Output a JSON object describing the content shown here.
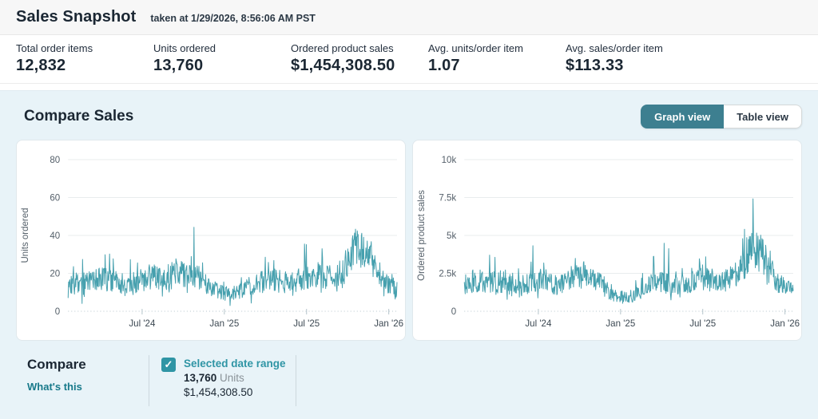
{
  "header": {
    "title": "Sales Snapshot",
    "taken_at": "taken at 1/29/2026, 8:56:06 AM PST"
  },
  "stats": [
    {
      "label": "Total order items",
      "value": "12,832"
    },
    {
      "label": "Units ordered",
      "value": "13,760"
    },
    {
      "label": "Ordered product sales",
      "value": "$1,454,308.50"
    },
    {
      "label": "Avg. units/order item",
      "value": "1.07"
    },
    {
      "label": "Avg. sales/order item",
      "value": "$113.33"
    }
  ],
  "compare_sales": {
    "title": "Compare Sales",
    "graph_view_label": "Graph view",
    "table_view_label": "Table view",
    "selected_view": "Graph view"
  },
  "compare": {
    "title": "Compare",
    "whats_this_label": "What's this",
    "selected_range": {
      "checked": true,
      "check_glyph": "✓",
      "label": "Selected date range",
      "units_value": "13,760",
      "units_suffix": " Units",
      "sales_value": "$1,454,308.50"
    }
  },
  "colors": {
    "accent_teal_button": "#3d7f90",
    "accent_teal_link": "#17798a",
    "accent_teal_checkbox": "#2f95a5",
    "chart_line": "#46a0ae",
    "panel_bg": "#e8f3f8",
    "grid_line": "#e9ecee",
    "axis_dotted": "#b6c5cc",
    "tick_text": "#55606a",
    "xlabel_text": "#3c4852"
  },
  "chart_data": [
    {
      "type": "line",
      "title": "",
      "xlabel": "",
      "ylabel": "Units ordered",
      "legend": "none",
      "grid": true,
      "x_range_dates": [
        "Jan 29 '24",
        "Jan 29 '26"
      ],
      "ylim": [
        0,
        80
      ],
      "yticks": [
        {
          "value": 0,
          "label": "0"
        },
        {
          "value": 20,
          "label": "20"
        },
        {
          "value": 40,
          "label": "40"
        },
        {
          "value": 60,
          "label": "60"
        },
        {
          "value": 80,
          "label": "80"
        }
      ],
      "xticks": [
        {
          "t": 0.225,
          "label": "Jul '24"
        },
        {
          "t": 0.475,
          "label": "Jan '25"
        },
        {
          "t": 0.725,
          "label": "Jul '25"
        },
        {
          "t": 0.975,
          "label": "Jan '26"
        }
      ],
      "points": 730,
      "seed": 7,
      "vmin": 3,
      "vmax": 59,
      "spike_prob": 0.06,
      "dip_prob": 0.07,
      "line_color": "#46a0ae",
      "total_for_range": 13760,
      "monthly_profile": [
        {
          "t": 0.0,
          "mean": 13,
          "spread": 6,
          "spike": 8
        },
        {
          "t": 0.042,
          "mean": 16,
          "spread": 7,
          "spike": 12
        },
        {
          "t": 0.083,
          "mean": 16,
          "spread": 7,
          "spike": 14
        },
        {
          "t": 0.125,
          "mean": 17,
          "spread": 7,
          "spike": 16
        },
        {
          "t": 0.167,
          "mean": 14,
          "spread": 6,
          "spike": 8
        },
        {
          "t": 0.208,
          "mean": 15,
          "spread": 6,
          "spike": 10
        },
        {
          "t": 0.25,
          "mean": 19,
          "spread": 7,
          "spike": 15
        },
        {
          "t": 0.292,
          "mean": 16,
          "spread": 6,
          "spike": 16
        },
        {
          "t": 0.333,
          "mean": 20,
          "spread": 7,
          "spike": 12
        },
        {
          "t": 0.375,
          "mean": 21,
          "spread": 8,
          "spike": 24
        },
        {
          "t": 0.417,
          "mean": 15,
          "spread": 6,
          "spike": 8
        },
        {
          "t": 0.458,
          "mean": 10,
          "spread": 4,
          "spike": 5
        },
        {
          "t": 0.5,
          "mean": 9,
          "spread": 4,
          "spike": 5
        },
        {
          "t": 0.542,
          "mean": 13,
          "spread": 5,
          "spike": 7
        },
        {
          "t": 0.583,
          "mean": 15,
          "spread": 6,
          "spike": 12
        },
        {
          "t": 0.625,
          "mean": 16,
          "spread": 6,
          "spike": 8
        },
        {
          "t": 0.667,
          "mean": 15,
          "spread": 6,
          "spike": 8
        },
        {
          "t": 0.708,
          "mean": 17,
          "spread": 6,
          "spike": 17
        },
        {
          "t": 0.75,
          "mean": 18,
          "spread": 6,
          "spike": 10
        },
        {
          "t": 0.792,
          "mean": 18,
          "spread": 7,
          "spike": 12
        },
        {
          "t": 0.833,
          "mean": 22,
          "spread": 8,
          "spike": 12
        },
        {
          "t": 0.875,
          "mean": 34,
          "spread": 10,
          "spike": 22
        },
        {
          "t": 0.917,
          "mean": 30,
          "spread": 9,
          "spike": 14
        },
        {
          "t": 0.958,
          "mean": 16,
          "spread": 6,
          "spike": 8
        },
        {
          "t": 1.0,
          "mean": 12,
          "spread": 5,
          "spike": 4
        }
      ]
    },
    {
      "type": "line",
      "title": "",
      "xlabel": "",
      "ylabel": "Ordered product sales",
      "legend": "none",
      "grid": true,
      "x_range_dates": [
        "Jan 29 '24",
        "Jan 29 '26"
      ],
      "ylim": [
        0,
        10000
      ],
      "yticks": [
        {
          "value": 0,
          "label": "0"
        },
        {
          "value": 2500,
          "label": "2.5k"
        },
        {
          "value": 5000,
          "label": "5k"
        },
        {
          "value": 7500,
          "label": "7.5k"
        },
        {
          "value": 10000,
          "label": "10k"
        }
      ],
      "xticks": [
        {
          "t": 0.225,
          "label": "Jul '24"
        },
        {
          "t": 0.475,
          "label": "Jan '25"
        },
        {
          "t": 0.725,
          "label": "Jul '25"
        },
        {
          "t": 0.975,
          "label": "Jan '26"
        }
      ],
      "points": 730,
      "seed": 13,
      "vmin": 250,
      "vmax": 8800,
      "spike_prob": 0.06,
      "dip_prob": 0.07,
      "line_color": "#46a0ae",
      "total_for_range": 1454308.5,
      "monthly_profile": [
        {
          "t": 0.0,
          "mean": 1800,
          "spread": 800,
          "spike": 900
        },
        {
          "t": 0.042,
          "mean": 1900,
          "spread": 800,
          "spike": 1400
        },
        {
          "t": 0.083,
          "mean": 1800,
          "spread": 800,
          "spike": 1700
        },
        {
          "t": 0.125,
          "mean": 2000,
          "spread": 800,
          "spike": 2100
        },
        {
          "t": 0.167,
          "mean": 1600,
          "spread": 700,
          "spike": 900
        },
        {
          "t": 0.208,
          "mean": 2000,
          "spread": 800,
          "spike": 2200
        },
        {
          "t": 0.25,
          "mean": 2000,
          "spread": 800,
          "spike": 1200
        },
        {
          "t": 0.292,
          "mean": 1700,
          "spread": 700,
          "spike": 1500
        },
        {
          "t": 0.333,
          "mean": 2200,
          "spread": 800,
          "spike": 1400
        },
        {
          "t": 0.375,
          "mean": 2500,
          "spread": 900,
          "spike": 2200
        },
        {
          "t": 0.417,
          "mean": 1800,
          "spread": 700,
          "spike": 900
        },
        {
          "t": 0.458,
          "mean": 1000,
          "spread": 450,
          "spike": 500
        },
        {
          "t": 0.5,
          "mean": 900,
          "spread": 400,
          "spike": 500
        },
        {
          "t": 0.542,
          "mean": 1400,
          "spread": 550,
          "spike": 900
        },
        {
          "t": 0.583,
          "mean": 2000,
          "spread": 700,
          "spike": 2900
        },
        {
          "t": 0.625,
          "mean": 1800,
          "spread": 700,
          "spike": 2400
        },
        {
          "t": 0.667,
          "mean": 1700,
          "spread": 650,
          "spike": 1000
        },
        {
          "t": 0.708,
          "mean": 2000,
          "spread": 700,
          "spike": 1400
        },
        {
          "t": 0.75,
          "mean": 2200,
          "spread": 750,
          "spike": 1800
        },
        {
          "t": 0.792,
          "mean": 2000,
          "spread": 700,
          "spike": 1300
        },
        {
          "t": 0.833,
          "mean": 2500,
          "spread": 850,
          "spike": 2000
        },
        {
          "t": 0.875,
          "mean": 4000,
          "spread": 1400,
          "spike": 4600
        },
        {
          "t": 0.917,
          "mean": 3500,
          "spread": 1300,
          "spike": 2900
        },
        {
          "t": 0.958,
          "mean": 1800,
          "spread": 700,
          "spike": 900
        },
        {
          "t": 1.0,
          "mean": 1300,
          "spread": 500,
          "spike": 400
        }
      ]
    }
  ]
}
